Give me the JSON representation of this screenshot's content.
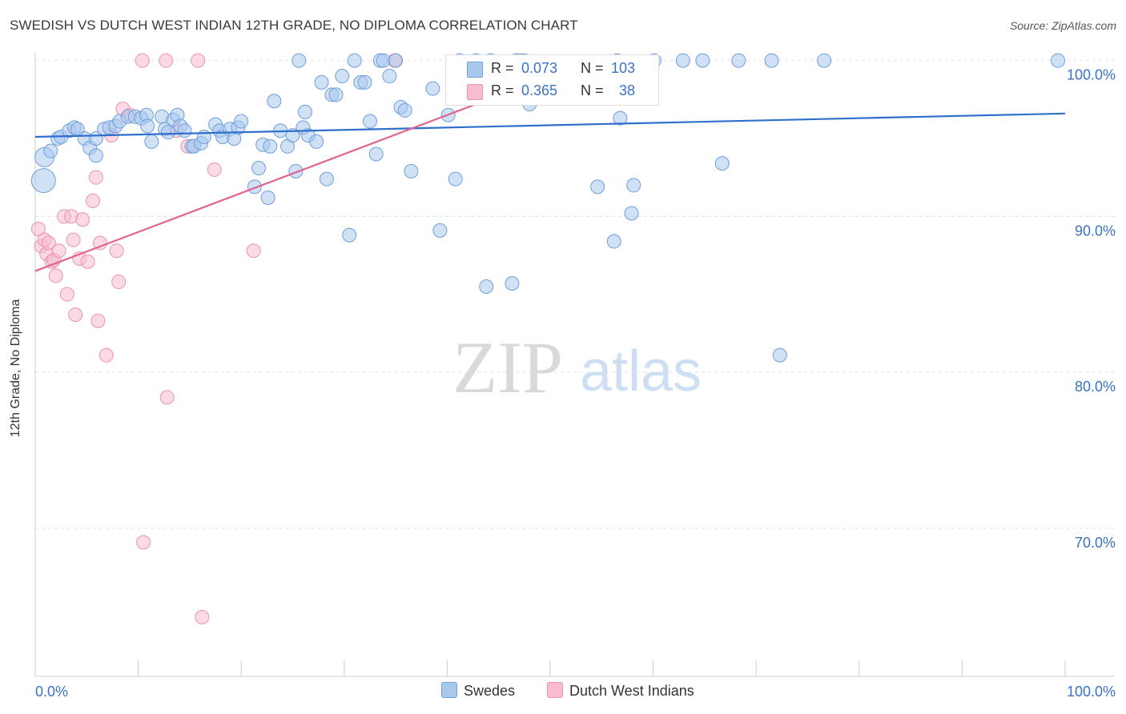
{
  "title": "SWEDISH VS DUTCH WEST INDIAN 12TH GRADE, NO DIPLOMA CORRELATION CHART",
  "source": "Source: ZipAtlas.com",
  "watermark": {
    "zip": "ZIP",
    "atlas": "atlas"
  },
  "legend": {
    "row1": {
      "r_label": "R = ",
      "r_value": "0.073",
      "n_label": "N = ",
      "n_value": "103"
    },
    "row2": {
      "r_label": "R = ",
      "r_value": "0.365",
      "n_label": "N = ",
      "n_value": "38"
    }
  },
  "colors": {
    "swedes_fill": "#a9c8ee",
    "swedes_stroke": "#6f9fdc",
    "swedes_line": "#2f6fcc",
    "dwi_fill": "#f7bccd",
    "dwi_stroke": "#ec93b0",
    "dwi_line": "#e0648f",
    "tick_text": "#3a72c4",
    "grid": "#e3e3e3"
  },
  "chart_data": {
    "type": "scatter",
    "title": "SWEDISH VS DUTCH WEST INDIAN 12TH GRADE, NO DIPLOMA CORRELATION CHART",
    "xlabel": "",
    "ylabel": "12th Grade, No Diploma",
    "xlim": [
      0,
      100
    ],
    "ylim": [
      60.5,
      100.8
    ],
    "x_ticks": [
      "0.0%",
      "100.0%"
    ],
    "y_ticks": [
      {
        "value": 100,
        "label": "100.0%"
      },
      {
        "value": 90,
        "label": "90.0%"
      },
      {
        "value": 80,
        "label": "80.0%"
      },
      {
        "value": 70,
        "label": "70.0%"
      }
    ],
    "grid": "horizontal dashed",
    "legend_position": "bottom",
    "series": [
      {
        "name": "Swedes",
        "R": 0.073,
        "N": 103,
        "trend": {
          "x": [
            0,
            100
          ],
          "y": [
            95.1,
            96.6
          ]
        },
        "points": [
          [
            0.8,
            92.3
          ],
          [
            0.9,
            93.8
          ],
          [
            1.5,
            94.2
          ],
          [
            2.2,
            95
          ],
          [
            2.5,
            95.1
          ],
          [
            3.3,
            95.5
          ],
          [
            3.8,
            95.7
          ],
          [
            4.1,
            95.6
          ],
          [
            4.8,
            95
          ],
          [
            5.3,
            94.4
          ],
          [
            5.9,
            95
          ],
          [
            5.9,
            93.9
          ],
          [
            6.7,
            95.6
          ],
          [
            7.2,
            95.7
          ],
          [
            7.8,
            95.8
          ],
          [
            8.2,
            96.1
          ],
          [
            9,
            96.4
          ],
          [
            9.7,
            96.4
          ],
          [
            10.3,
            96.3
          ],
          [
            10.8,
            96.5
          ],
          [
            10.9,
            95.8
          ],
          [
            11.3,
            94.8
          ],
          [
            12.3,
            96.4
          ],
          [
            12.6,
            95.6
          ],
          [
            12.9,
            95.4
          ],
          [
            13.4,
            96.2
          ],
          [
            13.8,
            96.5
          ],
          [
            14.1,
            95.8
          ],
          [
            14.5,
            95.5
          ],
          [
            15.2,
            94.5
          ],
          [
            15.4,
            94.5
          ],
          [
            16.1,
            94.7
          ],
          [
            16.4,
            95.1
          ],
          [
            17.5,
            95.9
          ],
          [
            17.9,
            95.5
          ],
          [
            18.2,
            95.1
          ],
          [
            18.9,
            95.6
          ],
          [
            19.3,
            95
          ],
          [
            19.7,
            95.7
          ],
          [
            20,
            96.1
          ],
          [
            21.3,
            91.9
          ],
          [
            21.7,
            93.1
          ],
          [
            22.1,
            94.6
          ],
          [
            22.6,
            91.2
          ],
          [
            22.8,
            94.5
          ],
          [
            23.2,
            97.4
          ],
          [
            23.8,
            95.5
          ],
          [
            24.5,
            94.5
          ],
          [
            25,
            95.2
          ],
          [
            25.3,
            92.9
          ],
          [
            25.6,
            100
          ],
          [
            26,
            95.7
          ],
          [
            26.2,
            96.7
          ],
          [
            26.5,
            95.2
          ],
          [
            27.3,
            94.8
          ],
          [
            27.8,
            98.6
          ],
          [
            28.3,
            92.4
          ],
          [
            28.8,
            97.8
          ],
          [
            29.2,
            97.8
          ],
          [
            29.8,
            99
          ],
          [
            30.5,
            88.8
          ],
          [
            31,
            100
          ],
          [
            31.6,
            98.6
          ],
          [
            32,
            98.6
          ],
          [
            32.5,
            96.1
          ],
          [
            33.1,
            94
          ],
          [
            33.5,
            100
          ],
          [
            33.8,
            100
          ],
          [
            34.4,
            99
          ],
          [
            35,
            100
          ],
          [
            35.5,
            97
          ],
          [
            35.9,
            96.8
          ],
          [
            36.5,
            92.9
          ],
          [
            39.3,
            89.1
          ],
          [
            40.1,
            96.5
          ],
          [
            40.8,
            92.4
          ],
          [
            41.2,
            100
          ],
          [
            42.8,
            100
          ],
          [
            43.8,
            85.5
          ],
          [
            46.3,
            85.7
          ],
          [
            46.7,
            100
          ],
          [
            47.1,
            100
          ],
          [
            48,
            97.2
          ],
          [
            54.6,
            91.9
          ],
          [
            55.7,
            99.9
          ],
          [
            56.2,
            88.4
          ],
          [
            56.8,
            96.3
          ],
          [
            57.9,
            90.2
          ],
          [
            58.1,
            92
          ],
          [
            60.1,
            100
          ],
          [
            62.9,
            100
          ],
          [
            66.7,
            93.4
          ],
          [
            68.3,
            100
          ],
          [
            71.5,
            100
          ],
          [
            72.3,
            81.1
          ],
          [
            76.6,
            100
          ],
          [
            44.2,
            100
          ],
          [
            47.5,
            100
          ],
          [
            56.5,
            100
          ],
          [
            64.8,
            100
          ],
          [
            99.3,
            100
          ],
          [
            38.6,
            98.2
          ],
          [
            52,
            98.5
          ]
        ]
      },
      {
        "name": "Dutch West Indians",
        "R": 0.365,
        "N": 38,
        "trend": {
          "x": [
            0,
            54
          ],
          "y": [
            86.5,
            100
          ]
        },
        "points": [
          [
            0.3,
            89.2
          ],
          [
            0.6,
            88.1
          ],
          [
            0.9,
            88.5
          ],
          [
            1.1,
            87.6
          ],
          [
            1.3,
            88.3
          ],
          [
            1.6,
            87.1
          ],
          [
            1.8,
            87.2
          ],
          [
            2,
            86.2
          ],
          [
            2.3,
            87.8
          ],
          [
            2.8,
            90
          ],
          [
            3.1,
            85
          ],
          [
            3.5,
            90
          ],
          [
            3.7,
            88.5
          ],
          [
            3.9,
            83.7
          ],
          [
            4.3,
            87.3
          ],
          [
            4.6,
            89.8
          ],
          [
            5.1,
            87.1
          ],
          [
            5.6,
            91
          ],
          [
            5.9,
            92.5
          ],
          [
            6.1,
            83.3
          ],
          [
            6.3,
            88.3
          ],
          [
            6.9,
            81.1
          ],
          [
            7.4,
            95.2
          ],
          [
            7.9,
            87.8
          ],
          [
            8.1,
            85.8
          ],
          [
            8.5,
            96.9
          ],
          [
            9.2,
            96.5
          ],
          [
            10.4,
            100
          ],
          [
            10.5,
            69.1
          ],
          [
            12.7,
            100
          ],
          [
            12.8,
            78.4
          ],
          [
            13.7,
            95.5
          ],
          [
            14.8,
            94.5
          ],
          [
            15.8,
            100
          ],
          [
            16.2,
            64.3
          ],
          [
            17.4,
            93
          ],
          [
            21.2,
            87.8
          ],
          [
            34.9,
            100
          ]
        ]
      }
    ]
  },
  "axes": {
    "y_title": "12th Grade, No Diploma",
    "x_min_label": "0.0%",
    "x_max_label": "100.0%"
  },
  "bottom_legend": {
    "swedes": "Swedes",
    "dwi": "Dutch West Indians"
  }
}
